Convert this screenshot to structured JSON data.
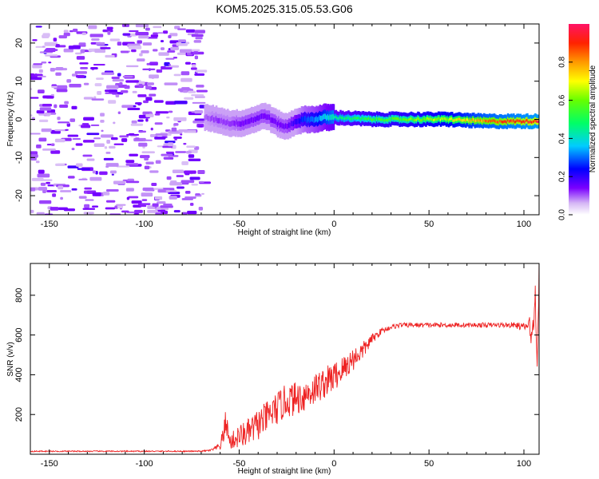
{
  "title": "KOM5.2025.315.05.53.G06",
  "chart_data": [
    {
      "type": "heatmap",
      "title": "KOM5.2025.315.05.53.G06",
      "xlabel": "Height of straight line (km)",
      "ylabel": "Frequency (Hz)",
      "xlim": [
        -160,
        108
      ],
      "ylim": [
        -25,
        25
      ],
      "xticks": [
        -150,
        -100,
        -50,
        0,
        50,
        100
      ],
      "yticks": [
        -20,
        -10,
        0,
        10,
        20
      ],
      "colorbar": {
        "label": "Normalized spectral amplitude",
        "range": [
          0,
          1
        ],
        "ticks": [
          "0.0",
          "0.2",
          "0.4",
          "0.6",
          "0.8"
        ],
        "tick_values": [
          0.0,
          0.2,
          0.4,
          0.6,
          0.8
        ]
      },
      "signal_ridge": {
        "x": [
          -68,
          -62,
          -55,
          -48,
          -42,
          -36,
          -30,
          -25,
          -20,
          -15,
          -10,
          -5,
          0,
          20,
          40,
          60,
          80,
          100,
          108
        ],
        "freq": [
          0.5,
          0,
          -1,
          -1,
          0,
          1,
          -1,
          -2,
          -0.5,
          0,
          0,
          0.5,
          0.5,
          0,
          0,
          0,
          -0.5,
          -0.5,
          -0.5
        ],
        "amplitude": [
          0.1,
          0.12,
          0.12,
          0.15,
          0.15,
          0.15,
          0.15,
          0.15,
          0.2,
          0.28,
          0.32,
          0.38,
          0.45,
          0.55,
          0.6,
          0.68,
          0.85,
          0.92,
          0.95
        ]
      }
    },
    {
      "type": "line",
      "xlabel": "Height of straight line (km)",
      "ylabel": "SNR (v/v)",
      "xlim": [
        -160,
        108
      ],
      "ylim": [
        0,
        960
      ],
      "xticks": [
        -150,
        -100,
        -50,
        0,
        50,
        100
      ],
      "yticks": [
        200,
        400,
        600,
        800
      ],
      "series": [
        {
          "name": "SNR",
          "color": "#ee2222",
          "x": [
            -160,
            -100,
            -70,
            -65,
            -60,
            -58,
            -57,
            -55,
            -50,
            -45,
            -40,
            -35,
            -30,
            -25,
            -20,
            -15,
            -10,
            -5,
            0,
            5,
            10,
            15,
            20,
            25,
            30,
            35,
            40,
            50,
            60,
            70,
            80,
            90,
            95,
            100,
            103,
            104,
            105,
            106,
            107,
            108
          ],
          "y": [
            15,
            15,
            15,
            20,
            40,
            110,
            170,
            60,
            90,
            110,
            150,
            190,
            230,
            270,
            280,
            300,
            330,
            360,
            390,
            430,
            480,
            520,
            580,
            620,
            640,
            650,
            650,
            650,
            650,
            650,
            650,
            650,
            650,
            640,
            650,
            600,
            640,
            800,
            550,
            890
          ],
          "noise_amplitude": [
            3,
            3,
            3,
            5,
            20,
            60,
            60,
            40,
            60,
            70,
            80,
            80,
            85,
            85,
            85,
            85,
            80,
            80,
            75,
            70,
            60,
            45,
            25,
            15,
            12,
            12,
            12,
            12,
            12,
            12,
            12,
            12,
            15,
            20,
            40,
            60,
            60,
            100,
            120,
            120
          ]
        }
      ]
    }
  ]
}
